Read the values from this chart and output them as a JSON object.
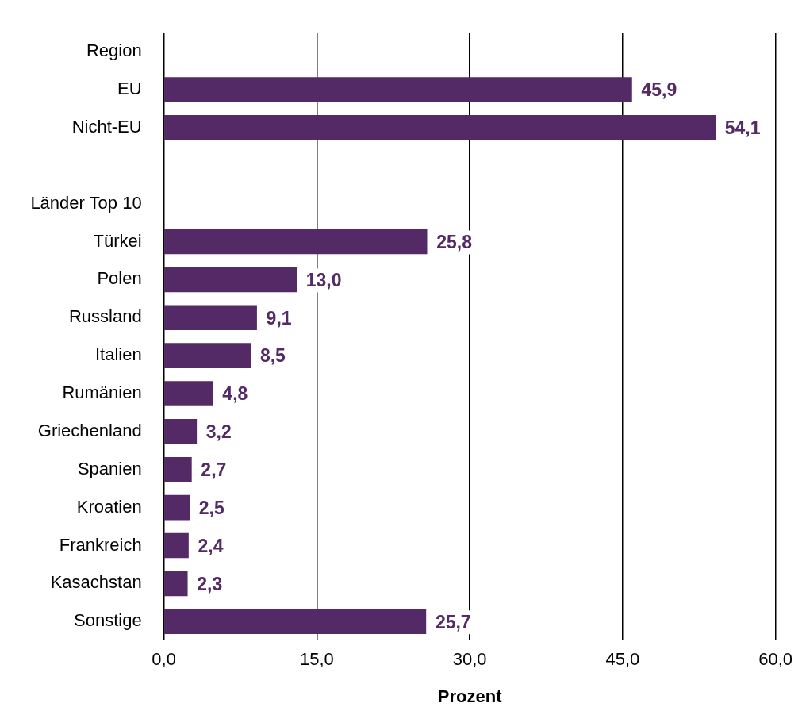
{
  "chart_data": {
    "type": "bar",
    "orientation": "horizontal",
    "xlabel": "Prozent",
    "categories": [
      "Region",
      "EU",
      "Nicht-EU",
      null,
      "Länder Top 10",
      "Türkei",
      "Polen",
      "Russland",
      "Italien",
      "Rumänien",
      "Griechenland",
      "Spanien",
      "Kroatien",
      "Frankreich",
      "Kasachstan",
      "Sonstige"
    ],
    "values": [
      null,
      45.9,
      54.1,
      null,
      null,
      25.8,
      13.0,
      9.1,
      8.5,
      4.8,
      3.2,
      2.7,
      2.5,
      2.4,
      2.3,
      25.7
    ],
    "value_labels": [
      null,
      "45,9",
      "54,1",
      null,
      null,
      "25,8",
      "13,0",
      "9,1",
      "8,5",
      "4,8",
      "3,2",
      "2,7",
      "2,5",
      "2,4",
      "2,3",
      "25,7"
    ],
    "color": "#532a66",
    "xlim": [
      0,
      60
    ],
    "xticks": [
      {
        "value": 0,
        "label": "0,0"
      },
      {
        "value": 15,
        "label": "15,0"
      },
      {
        "value": 30,
        "label": "30,0"
      },
      {
        "value": 45,
        "label": "45,0"
      },
      {
        "value": 60,
        "label": "60,0"
      }
    ],
    "grid": "x"
  }
}
